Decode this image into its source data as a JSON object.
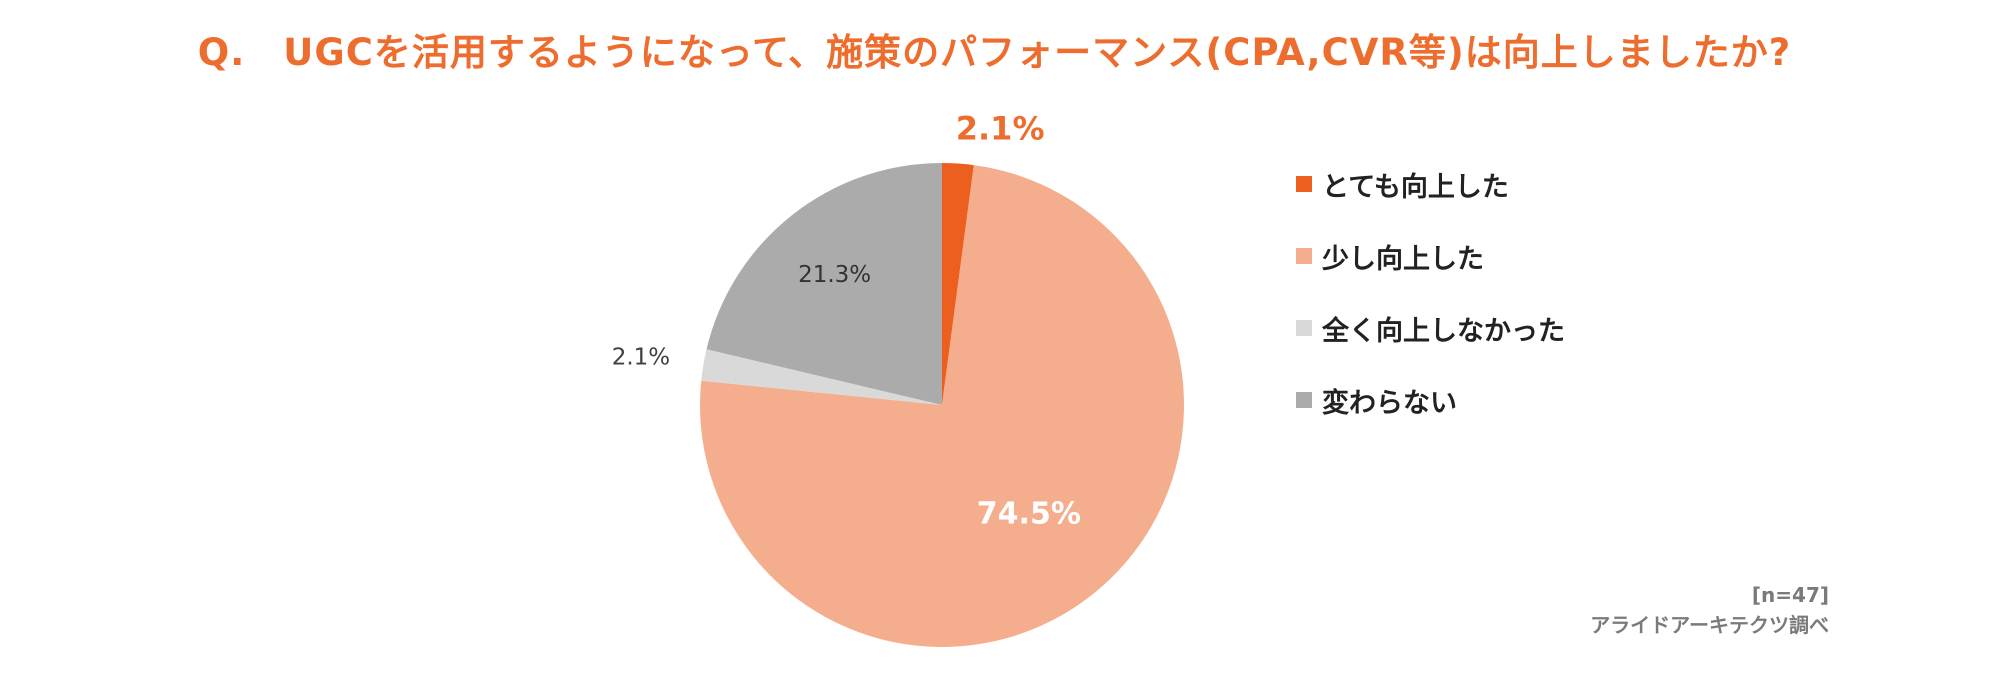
{
  "chart_data": {
    "type": "pie",
    "title": "Q.　UGCを活用するようになって、施策のパフォーマンス(CPA,CVR等)は向上しましたか?",
    "unit": "%",
    "slices": [
      {
        "name": "とても向上した",
        "value": 2.1,
        "label": "2.1%",
        "color": "#ED5F1E"
      },
      {
        "name": "少し向上した",
        "value": 74.5,
        "label": "74.5%",
        "color": "#F4AE8E"
      },
      {
        "name": "全く向上しなかった",
        "value": 2.1,
        "label": "2.1%",
        "color": "#D9D9D9"
      },
      {
        "name": "変わらない",
        "value": 21.3,
        "label": "21.3%",
        "color": "#ABABAB"
      }
    ],
    "start_angle": "12 o'clock",
    "direction": "clockwise",
    "legend_position": "right"
  },
  "footer": {
    "sample_size": "[n=47]",
    "source": "アライドアーキテクツ調べ"
  }
}
